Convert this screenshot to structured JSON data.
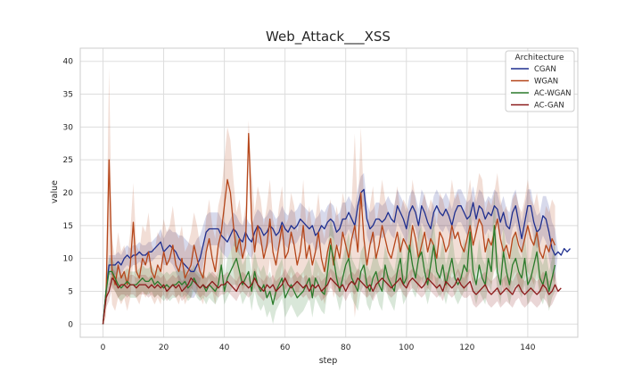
{
  "chart_data": {
    "type": "line",
    "title": "Web_Attack___XSS",
    "xlabel": "step",
    "ylabel": "value",
    "xlim": [
      -7.5,
      156.5
    ],
    "ylim": [
      -2,
      42
    ],
    "xticks": [
      0,
      20,
      40,
      60,
      80,
      100,
      120,
      140
    ],
    "yticks": [
      0,
      5,
      10,
      15,
      20,
      25,
      30,
      35,
      40
    ],
    "grid": true,
    "legend": {
      "title": "Architecture",
      "placement": "top-right"
    },
    "band": "shaded region around each line shows variability across runs",
    "series": [
      {
        "name": "CGAN",
        "color": "#1f2f8f",
        "mean": [
          0,
          5,
          9,
          9,
          9,
          9.5,
          9,
          10,
          10.5,
          10,
          10.5,
          10.5,
          11,
          10.5,
          10.5,
          11,
          11,
          11.5,
          12,
          12.5,
          11,
          11.5,
          12,
          11.5,
          11,
          10,
          9.5,
          9,
          8.5,
          8,
          8,
          9,
          10,
          12,
          14,
          14.5,
          14.5,
          14.5,
          14.5,
          13.5,
          13,
          12.5,
          13.5,
          14.5,
          14,
          13,
          12.5,
          14,
          13,
          12.5,
          14,
          15,
          14.5,
          13.5,
          14,
          15,
          14.5,
          13.5,
          14,
          15.5,
          14.5,
          14,
          15,
          14.5,
          15,
          16,
          15.5,
          15,
          14.5,
          15,
          13.5,
          14,
          15,
          14.5,
          15.5,
          16,
          15.5,
          14,
          14.5,
          16,
          16,
          17,
          16,
          15,
          18,
          20,
          20.5,
          16,
          14.5,
          15,
          16,
          16,
          15.5,
          16,
          17,
          16,
          15.5,
          18,
          17,
          16,
          14.5,
          17,
          18,
          17,
          15,
          18,
          17,
          15.5,
          14.5,
          17,
          18,
          17,
          16.5,
          17.5,
          16.5,
          15,
          17,
          18,
          18,
          17,
          16,
          16.5,
          18.5,
          16,
          18,
          17.5,
          16,
          17,
          16.5,
          18,
          17.5,
          15.5,
          17,
          15,
          14.5,
          17,
          18,
          15.5,
          13,
          15.5,
          18,
          18,
          15.5,
          14,
          14.5,
          16.5,
          16,
          14,
          11.5,
          10.5,
          11,
          10.5,
          11.5,
          11,
          11.5
        ],
        "band": [
          0,
          1,
          1.5,
          1.5,
          1.5,
          1.5,
          1.5,
          1.5,
          1.5,
          1.5,
          1.5,
          1.5,
          1.5,
          1.5,
          1.5,
          1.5,
          1.5,
          1.5,
          1.5,
          2,
          2,
          2.5,
          2.5,
          2.5,
          3,
          3.5,
          4,
          4,
          4,
          4,
          4,
          4,
          3.5,
          3,
          2.5,
          2.5,
          2.5,
          2.5,
          2.5,
          2.5,
          2.5,
          2.5,
          2.5,
          2.5,
          2.5,
          2.5,
          2.5,
          2.5,
          2.5,
          2.5,
          2.5,
          2.5,
          2.5,
          2.5,
          2.5,
          2.5,
          2.5,
          2.5,
          2.5,
          2.5,
          2.5,
          2.5,
          2.5,
          2.5,
          2.5,
          2.5,
          2.5,
          2.5,
          2.5,
          2.5,
          2.5,
          2.5,
          2.5,
          2.5,
          2.5,
          2.5,
          2.5,
          2.5,
          2.5,
          2.5,
          2.5,
          2.5,
          2.5,
          2.5,
          2.5,
          2.5,
          2.5,
          2.5,
          2.5,
          2.5,
          2.5,
          2.5,
          2.5,
          2.5,
          2.5,
          2.5,
          2.5,
          2.5,
          2.5,
          2.5,
          2.5,
          2.5,
          2.5,
          2.5,
          2.5,
          2.5,
          2.5,
          2.5,
          2.5,
          2.5,
          2.5,
          2.5,
          2.5,
          2.5,
          2.5,
          2.5,
          2.5,
          2.5,
          2.5,
          2.5,
          2.5,
          2.5,
          2.5,
          2.5,
          2.5,
          2.5,
          2.5,
          2.5,
          2.5,
          2.5,
          2.5,
          2.5,
          2.5,
          2.5,
          2.5,
          2.5,
          2.5,
          2.5,
          2.5,
          2.5,
          2.5,
          2.5,
          2.5,
          2.5,
          2.5,
          3,
          3.5,
          4,
          4,
          4
        ]
      },
      {
        "name": "WGAN",
        "color": "#b5461a",
        "mean": [
          0,
          4,
          25,
          8,
          6,
          9,
          7,
          8,
          6,
          9,
          15.5,
          8,
          7,
          10,
          9,
          11,
          8,
          7,
          9,
          8,
          11,
          9,
          10,
          12,
          9,
          8,
          10,
          7,
          8,
          9,
          12,
          10,
          8,
          7,
          11,
          13,
          10,
          8,
          12,
          14,
          18,
          22,
          20,
          15,
          11,
          13,
          10,
          12,
          29,
          16,
          11,
          15,
          13,
          10,
          12,
          16,
          11,
          9,
          12,
          15,
          10,
          11,
          14,
          12,
          9,
          11,
          15,
          10,
          12,
          9,
          11,
          14,
          10,
          8,
          11,
          13,
          9,
          12,
          10,
          14,
          12,
          10,
          13,
          15,
          11,
          20,
          13,
          9,
          12,
          14,
          10,
          12,
          15,
          13,
          11,
          10,
          12,
          14,
          11,
          13,
          12,
          11,
          15,
          13,
          10,
          12,
          14,
          11,
          13,
          12,
          10,
          14,
          13,
          11,
          12,
          15,
          13,
          14,
          12,
          11,
          13,
          15,
          12,
          14,
          16,
          15,
          11,
          13,
          12,
          14,
          16,
          13,
          11,
          12,
          10,
          13,
          14,
          12,
          11,
          13,
          15,
          13,
          12,
          14,
          11,
          10,
          12,
          11,
          13,
          12
        ],
        "band": [
          0,
          3,
          14,
          5,
          4,
          5,
          4,
          4,
          4,
          5,
          6,
          4,
          4,
          5,
          5,
          6,
          4,
          4,
          5,
          5,
          5,
          5,
          5,
          6,
          5,
          5,
          5,
          4,
          4,
          5,
          5,
          5,
          4,
          4,
          5,
          6,
          5,
          5,
          6,
          6,
          7,
          8,
          8,
          7,
          6,
          6,
          5,
          6,
          2,
          7,
          6,
          6,
          6,
          5,
          6,
          6,
          5,
          5,
          6,
          6,
          5,
          5,
          6,
          6,
          5,
          5,
          7,
          5,
          6,
          5,
          5,
          6,
          5,
          5,
          6,
          6,
          5,
          6,
          5,
          6,
          6,
          5,
          6,
          14,
          6,
          10,
          6,
          5,
          6,
          7,
          5,
          6,
          7,
          6,
          6,
          5,
          6,
          7,
          6,
          6,
          6,
          6,
          7,
          6,
          5,
          6,
          6,
          6,
          6,
          6,
          5,
          6,
          6,
          6,
          6,
          7,
          6,
          6,
          6,
          6,
          6,
          7,
          6,
          6,
          7,
          7,
          6,
          6,
          6,
          6,
          7,
          6,
          6,
          6,
          5,
          6,
          6,
          6,
          6,
          6,
          7,
          6,
          6,
          6,
          6,
          5,
          6,
          6,
          6,
          6
        ]
      },
      {
        "name": "AC-WGAN",
        "color": "#2a7a2a",
        "mean": [
          0,
          5,
          8,
          8,
          7,
          6,
          5.5,
          6,
          6.5,
          6,
          6,
          6,
          6.5,
          7,
          6.5,
          6.5,
          7,
          6,
          6.5,
          6,
          5.5,
          6,
          5.5,
          6,
          6,
          6.5,
          6,
          6.5,
          5.5,
          6,
          7,
          6,
          5.5,
          6,
          5,
          6,
          5.5,
          5,
          6,
          9,
          5,
          7,
          8,
          9,
          10,
          8,
          6,
          7,
          8,
          5,
          8,
          6,
          5,
          6,
          4,
          5,
          3,
          5,
          6,
          7,
          4,
          5,
          6,
          5,
          4,
          4.5,
          5,
          6,
          7,
          4,
          7,
          6,
          5,
          4.5,
          8,
          12,
          10,
          7,
          5,
          7,
          9,
          10,
          7,
          6,
          5,
          8,
          9,
          6,
          5,
          7,
          8,
          6,
          5,
          9,
          7,
          6,
          5,
          8,
          10,
          6,
          7,
          12,
          9,
          7,
          10,
          11,
          8,
          6,
          9,
          12,
          8,
          7,
          9,
          6,
          8,
          10,
          7,
          6,
          7,
          9,
          8,
          14,
          8,
          6,
          9,
          7,
          6,
          10,
          8,
          15,
          8,
          6,
          11,
          8,
          6,
          9,
          10,
          8,
          7,
          10,
          6,
          7,
          9,
          11,
          7,
          6,
          8,
          5,
          7,
          9
        ],
        "band": [
          0,
          2,
          2,
          2,
          2,
          2,
          2,
          2,
          2,
          2,
          2,
          2,
          2,
          2,
          2,
          2,
          2,
          2,
          2,
          2,
          2,
          2,
          2,
          2,
          2,
          2,
          2,
          2,
          2,
          2,
          2,
          2,
          2,
          2,
          2,
          2,
          2,
          2,
          2,
          3,
          2,
          3,
          3,
          3,
          4,
          3,
          3,
          3,
          3,
          3,
          3,
          3,
          3,
          3,
          3,
          3,
          3,
          3,
          3,
          3,
          3,
          3,
          3,
          3,
          3,
          3,
          3,
          3,
          3,
          3,
          3,
          3,
          3,
          3,
          3,
          4,
          4,
          3,
          3,
          3,
          3,
          4,
          3,
          3,
          3,
          3,
          3,
          3,
          3,
          3,
          3,
          3,
          3,
          3,
          3,
          3,
          3,
          3,
          4,
          3,
          3,
          4,
          4,
          3,
          4,
          4,
          3,
          3,
          4,
          4,
          3,
          3,
          4,
          3,
          3,
          4,
          3,
          3,
          3,
          4,
          3,
          5,
          3,
          3,
          4,
          3,
          3,
          4,
          3,
          5,
          3,
          3,
          4,
          3,
          3,
          4,
          4,
          3,
          3,
          4,
          3,
          3,
          4,
          4,
          3,
          3,
          3,
          3,
          3,
          4
        ]
      },
      {
        "name": "AC-GAN",
        "color": "#8b1a1a",
        "mean": [
          0,
          4,
          5,
          7,
          6.5,
          5.5,
          6,
          6,
          5.5,
          6,
          6,
          5.5,
          6,
          6,
          6,
          5.5,
          6,
          5.5,
          6,
          5.5,
          6,
          5,
          5.5,
          6,
          5.5,
          6,
          5,
          5.5,
          6,
          7,
          6.5,
          6,
          5.5,
          6,
          5.5,
          6,
          6.5,
          6,
          5.5,
          6,
          6,
          6.5,
          6,
          5.5,
          5,
          6,
          6.5,
          6,
          5.5,
          6,
          7,
          6,
          5.5,
          5,
          6,
          5.5,
          6,
          5,
          5.5,
          6,
          7,
          6,
          5.5,
          6,
          6.5,
          6,
          5.5,
          6,
          5,
          6,
          5.5,
          6,
          5,
          5.5,
          6,
          7,
          6.5,
          6,
          5.5,
          6,
          5,
          6,
          6.5,
          6,
          7,
          6.5,
          6,
          5.5,
          6,
          5,
          6,
          6.5,
          7,
          6.5,
          6,
          5.5,
          6,
          6.5,
          7,
          6,
          5.5,
          6.5,
          7,
          6.5,
          6,
          5.5,
          6,
          7,
          6.5,
          6,
          5.5,
          6,
          5,
          6.5,
          6,
          5.5,
          6,
          7,
          6,
          5.5,
          6,
          6.5,
          5,
          4.5,
          5,
          5.5,
          6,
          5,
          4.5,
          5,
          5.5,
          4.5,
          5,
          5.5,
          5,
          4.5,
          5.5,
          6,
          5,
          4.5,
          5,
          5.5,
          5,
          4.5,
          5,
          6,
          5.5,
          4.5,
          5,
          6,
          5,
          5.5
        ],
        "band": [
          0,
          1.5,
          1.5,
          1.5,
          1.5,
          1.5,
          1.5,
          1.5,
          1.5,
          1.5,
          1.5,
          1.5,
          1.5,
          1.5,
          1.5,
          1.5,
          1.5,
          1.5,
          1.5,
          1.5,
          1.5,
          1.5,
          1.5,
          1.5,
          1.5,
          1.5,
          1.5,
          1.5,
          1.5,
          1.5,
          1.5,
          1.5,
          1.5,
          1.5,
          1.5,
          1.5,
          1.5,
          1.5,
          1.5,
          1.5,
          1.5,
          1.5,
          1.5,
          1.5,
          1.5,
          1.5,
          1.5,
          1.5,
          1.5,
          1.5,
          1.5,
          1.5,
          1.5,
          1.5,
          1.5,
          1.5,
          1.5,
          1.5,
          1.5,
          1.5,
          1.5,
          1.5,
          1.5,
          1.5,
          1.5,
          1.5,
          1.5,
          1.5,
          1.5,
          1.5,
          1.5,
          1.5,
          1.5,
          1.5,
          1.5,
          1.5,
          1.5,
          1.5,
          1.5,
          1.5,
          1.5,
          1.5,
          1.5,
          1.5,
          1.5,
          1.5,
          1.5,
          1.5,
          1.5,
          1.5,
          1.5,
          1.5,
          1.5,
          1.5,
          1.5,
          1.5,
          1.5,
          1.5,
          1.5,
          1.5,
          1.5,
          1.5,
          1.5,
          1.5,
          1.5,
          1.5,
          1.5,
          1.5,
          1.5,
          1.5,
          1.5,
          1.5,
          1.5,
          1.5,
          1.5,
          1.5,
          1.5,
          1.5,
          1.5,
          1.5,
          2,
          2,
          2,
          2,
          2,
          2,
          2,
          2,
          2,
          2,
          2,
          2,
          2,
          2,
          2,
          2,
          2,
          2,
          2,
          2,
          2,
          2,
          2,
          2,
          2,
          2,
          2,
          2,
          2,
          2
        ]
      }
    ]
  }
}
